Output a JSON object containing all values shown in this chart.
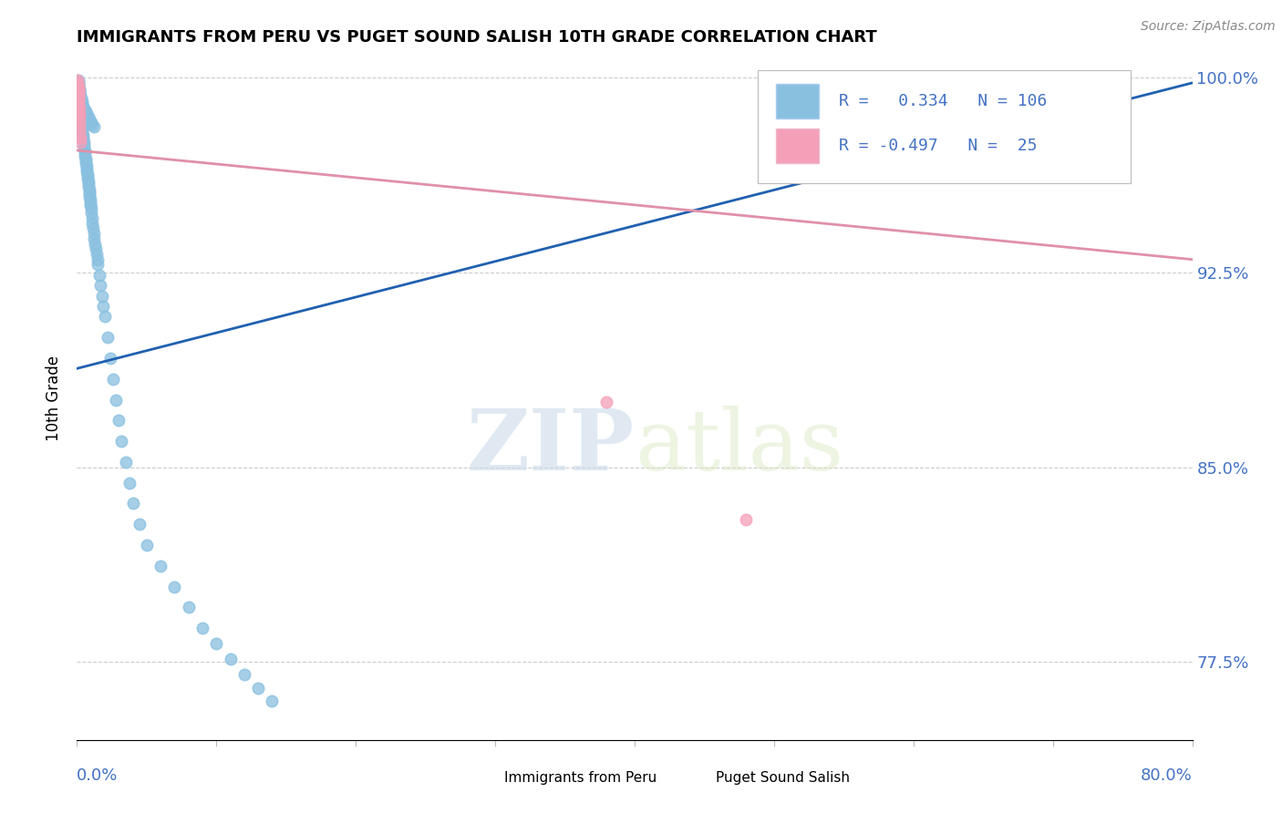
{
  "title": "IMMIGRANTS FROM PERU VS PUGET SOUND SALISH 10TH GRADE CORRELATION CHART",
  "source": "Source: ZipAtlas.com",
  "ylabel_label": "10th Grade",
  "xmin": 0.0,
  "xmax": 0.8,
  "ymin": 0.745,
  "ymax": 1.008,
  "y_tick_vals": [
    1.0,
    0.925,
    0.85,
    0.775
  ],
  "color_blue": "#89c0e0",
  "color_pink": "#f4a0b8",
  "trendline_blue": "#2060b0",
  "trendline_pink": "#e090a8",
  "watermark_zip": "ZIP",
  "watermark_atlas": "atlas",
  "background_color": "#ffffff",
  "blue_dots_x": [
    0.0008,
    0.001,
    0.0012,
    0.0014,
    0.0015,
    0.0016,
    0.0018,
    0.002,
    0.0022,
    0.0024,
    0.0025,
    0.0026,
    0.0028,
    0.003,
    0.0032,
    0.0034,
    0.0035,
    0.0036,
    0.0038,
    0.004,
    0.0042,
    0.0044,
    0.0046,
    0.0048,
    0.005,
    0.0052,
    0.0054,
    0.0056,
    0.0058,
    0.006,
    0.0062,
    0.0065,
    0.0068,
    0.007,
    0.0072,
    0.0074,
    0.0076,
    0.0078,
    0.008,
    0.0082,
    0.0084,
    0.0086,
    0.0088,
    0.009,
    0.0092,
    0.0094,
    0.0096,
    0.0098,
    0.01,
    0.0104,
    0.0108,
    0.0112,
    0.0116,
    0.012,
    0.0125,
    0.013,
    0.0135,
    0.014,
    0.0145,
    0.015,
    0.016,
    0.017,
    0.018,
    0.019,
    0.02,
    0.022,
    0.024,
    0.026,
    0.028,
    0.03,
    0.032,
    0.035,
    0.038,
    0.04,
    0.045,
    0.05,
    0.06,
    0.07,
    0.08,
    0.09,
    0.1,
    0.11,
    0.12,
    0.13,
    0.14,
    0.0008,
    0.001,
    0.0012,
    0.0015,
    0.0018,
    0.002,
    0.0025,
    0.003,
    0.0035,
    0.004,
    0.0045,
    0.005,
    0.006,
    0.007,
    0.008,
    0.009,
    0.01,
    0.011,
    0.012,
    0.0008,
    0.0012,
    0.0016
  ],
  "blue_dots_y": [
    0.998,
    0.997,
    0.996,
    0.995,
    0.994,
    0.993,
    0.992,
    0.991,
    0.99,
    0.989,
    0.988,
    0.987,
    0.986,
    0.985,
    0.984,
    0.983,
    0.982,
    0.981,
    0.98,
    0.979,
    0.978,
    0.977,
    0.976,
    0.975,
    0.974,
    0.973,
    0.972,
    0.971,
    0.97,
    0.969,
    0.968,
    0.967,
    0.966,
    0.965,
    0.964,
    0.963,
    0.962,
    0.961,
    0.96,
    0.959,
    0.958,
    0.957,
    0.956,
    0.955,
    0.954,
    0.953,
    0.952,
    0.951,
    0.95,
    0.948,
    0.946,
    0.944,
    0.942,
    0.94,
    0.938,
    0.936,
    0.934,
    0.932,
    0.93,
    0.928,
    0.924,
    0.92,
    0.916,
    0.912,
    0.908,
    0.9,
    0.892,
    0.884,
    0.876,
    0.868,
    0.86,
    0.852,
    0.844,
    0.836,
    0.828,
    0.82,
    0.812,
    0.804,
    0.796,
    0.788,
    0.782,
    0.776,
    0.77,
    0.765,
    0.76,
    0.999,
    0.998,
    0.997,
    0.996,
    0.995,
    0.994,
    0.993,
    0.992,
    0.991,
    0.99,
    0.989,
    0.988,
    0.987,
    0.986,
    0.985,
    0.984,
    0.983,
    0.982,
    0.981,
    0.993,
    0.989,
    0.985
  ],
  "pink_dots_x": [
    0.0006,
    0.0008,
    0.001,
    0.0012,
    0.0014,
    0.0016,
    0.0018,
    0.002,
    0.0022,
    0.0024,
    0.0006,
    0.0008,
    0.001,
    0.0012,
    0.0014,
    0.0008,
    0.001,
    0.0012,
    0.0006,
    0.0008,
    0.001,
    0.0016,
    0.0006,
    0.38,
    0.48
  ],
  "pink_dots_y": [
    0.993,
    0.991,
    0.989,
    0.987,
    0.985,
    0.983,
    0.981,
    0.979,
    0.977,
    0.975,
    0.996,
    0.994,
    0.992,
    0.99,
    0.988,
    0.997,
    0.995,
    0.993,
    0.998,
    0.996,
    0.994,
    0.986,
    0.999,
    0.875,
    0.83
  ],
  "blue_trend_x": [
    0.0,
    0.8
  ],
  "blue_trend_y": [
    0.888,
    0.998
  ],
  "pink_trend_x": [
    0.0,
    0.8
  ],
  "pink_trend_y": [
    0.972,
    0.93
  ]
}
